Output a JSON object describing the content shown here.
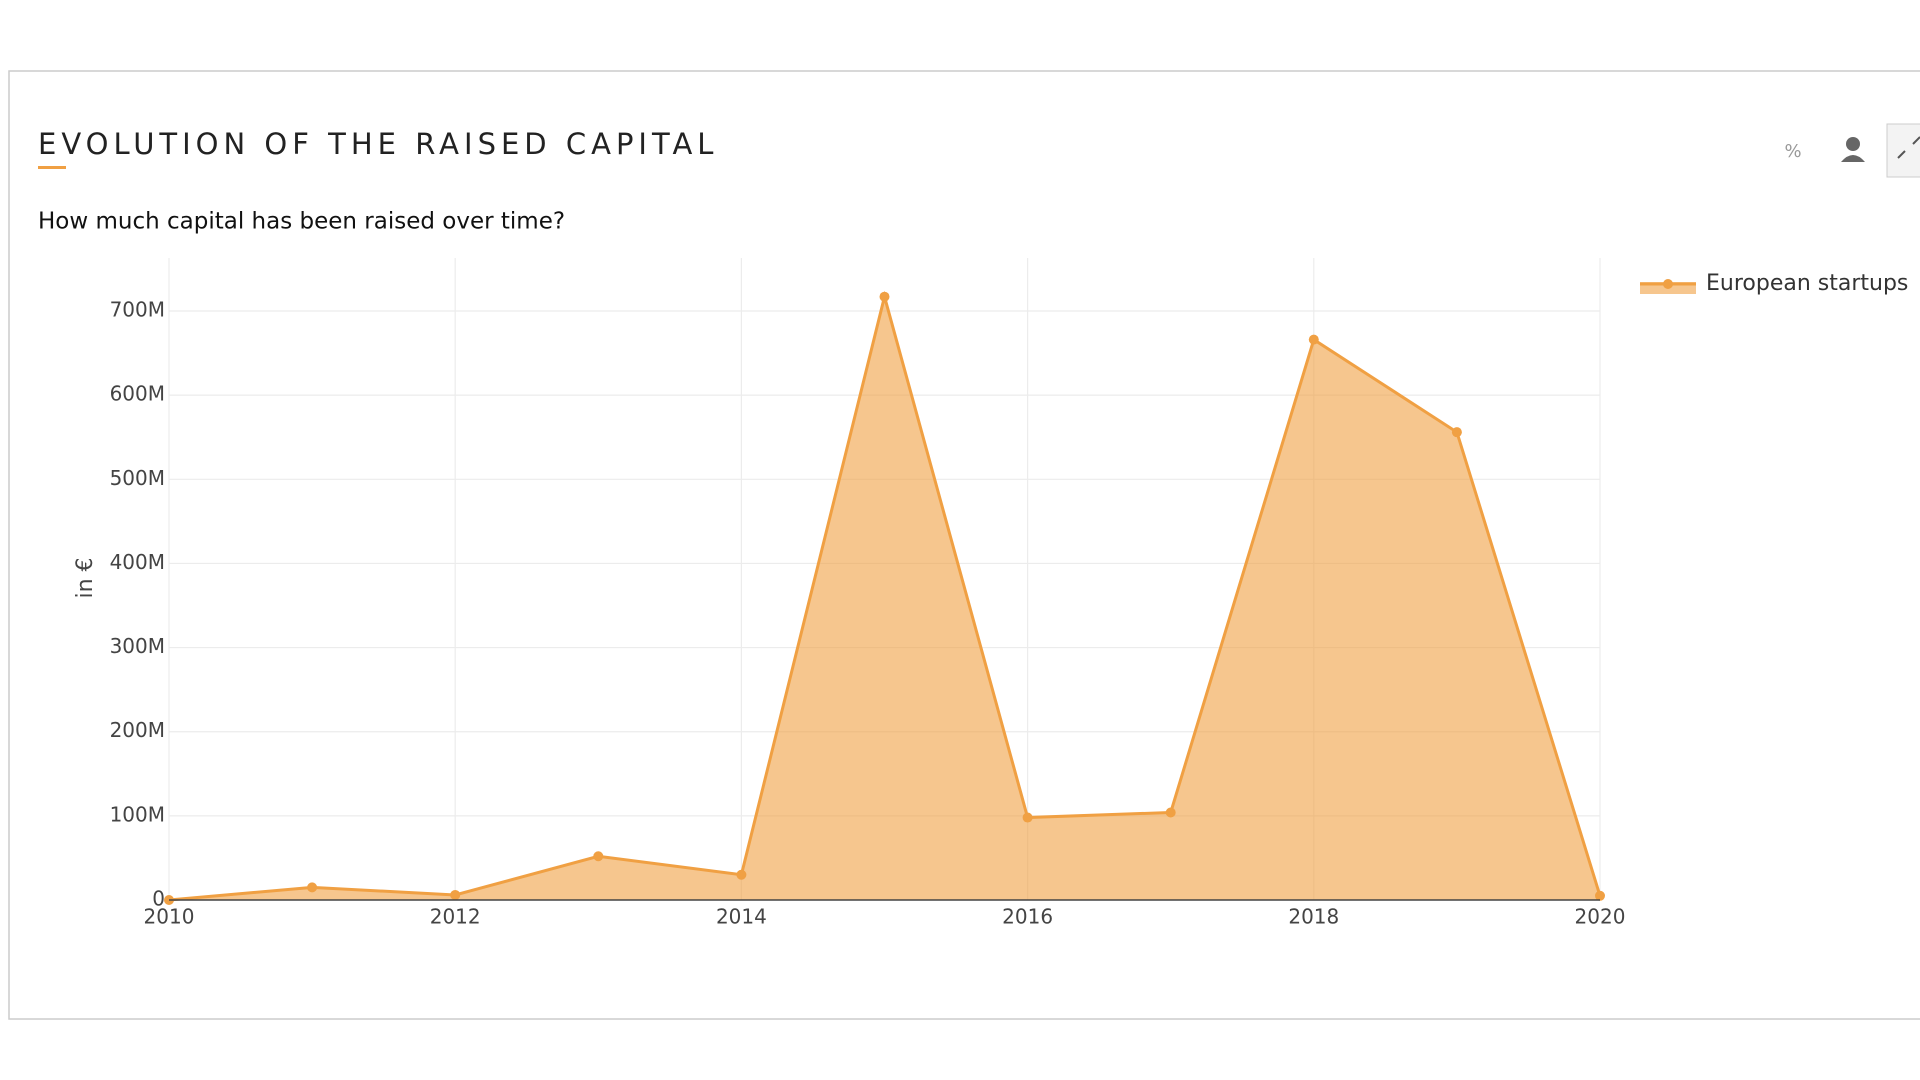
{
  "chart_data": {
    "type": "area",
    "title": "EVOLUTION OF THE RAISED CAPITAL",
    "subtitle": "How much capital has been raised over time?",
    "y_label": "in €",
    "x": [
      2010,
      2011,
      2012,
      2013,
      2014,
      2015,
      2016,
      2017,
      2018,
      2019,
      2020
    ],
    "series": [
      {
        "name": "European startups",
        "color": "#f0a043",
        "values": [
          0,
          15000000,
          6000000,
          52000000,
          30000000,
          717000000,
          98000000,
          104000000,
          666000000,
          556000000,
          5000000
        ]
      }
    ],
    "xlim": [
      2010,
      2020
    ],
    "xticks": [
      2010,
      2012,
      2014,
      2016,
      2018,
      2020
    ],
    "ylim": [
      0,
      763000000
    ],
    "yticks": [
      0,
      {
        "value": 100000000,
        "label": "100M"
      },
      {
        "value": 200000000,
        "label": "200M"
      },
      {
        "value": 300000000,
        "label": "300M"
      },
      {
        "value": 400000000,
        "label": "400M"
      },
      {
        "value": 500000000,
        "label": "500M"
      },
      {
        "value": 600000000,
        "label": "600M"
      },
      {
        "value": 700000000,
        "label": "700M"
      }
    ],
    "grid": true,
    "legend": "top-right"
  },
  "toolbar": {
    "percent": "%"
  }
}
